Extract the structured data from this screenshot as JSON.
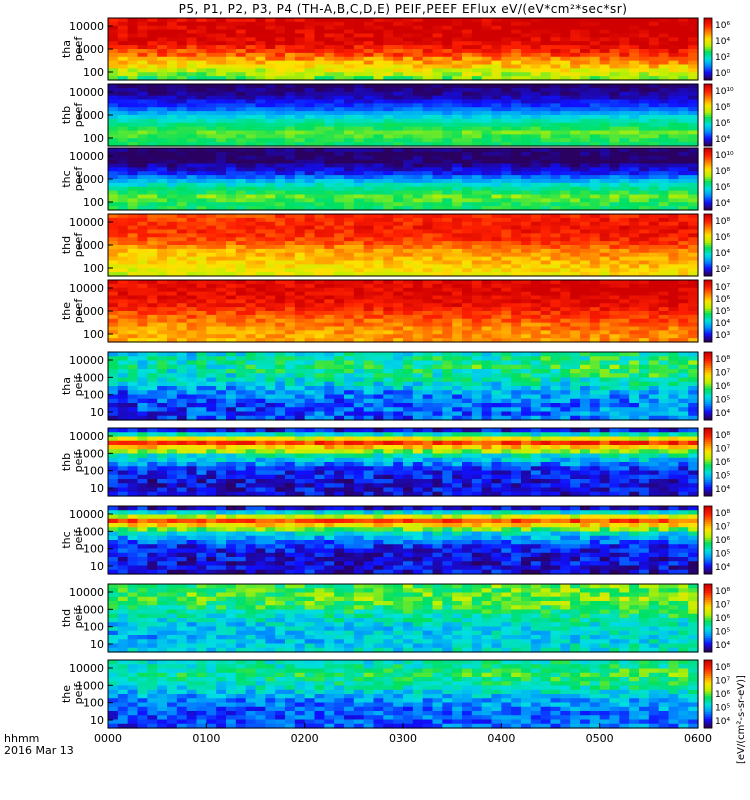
{
  "title": "P5, P1, P2, P3, P4 (TH-A,B,C,D,E) PEIF,PEEF EFlux eV/(eV*cm²*sec*sr)",
  "chart_data": {
    "type": "heatmap",
    "x_ticks": [
      "0000",
      "0100",
      "0200",
      "0300",
      "0400",
      "0500",
      "0600"
    ],
    "x_label_line1": "hhmm",
    "x_label_line2": "2016 Mar 13",
    "colorbar_unit": "[eV/(cm²-s-sr-eV)]",
    "colorscale": [
      "#2a0060",
      "#1010ff",
      "#0090ff",
      "#00e0e0",
      "#00e060",
      "#c0f000",
      "#ffe000",
      "#ff8000",
      "#ff2000",
      "#d00000"
    ],
    "panels": [
      {
        "probe": "tha",
        "product": "peef",
        "y_ticks": [
          "10000",
          "1000",
          "100"
        ],
        "cbar_ticks": [
          "10⁶",
          "10⁴",
          "10²",
          "10⁰"
        ],
        "cbar_range": [
          0,
          6
        ],
        "profile": [
          6,
          6,
          5.8,
          5,
          4,
          3
        ],
        "trend": 0.4,
        "noise": 0.5
      },
      {
        "probe": "thb",
        "product": "peef",
        "y_ticks": [
          "10000",
          "1000",
          "100"
        ],
        "cbar_ticks": [
          "10¹⁰",
          "10⁸",
          "10⁶",
          "10⁴"
        ],
        "cbar_range": [
          3,
          11
        ],
        "profile": [
          3,
          3.5,
          4.5,
          6,
          7,
          6.5
        ],
        "trend": 0,
        "noise": 0.3
      },
      {
        "probe": "thc",
        "product": "peef",
        "y_ticks": [
          "10000",
          "1000",
          "100"
        ],
        "cbar_ticks": [
          "10¹⁰",
          "10⁸",
          "10⁶",
          "10⁴"
        ],
        "cbar_range": [
          3,
          11
        ],
        "profile": [
          3,
          3,
          4,
          5.8,
          7,
          6.5
        ],
        "trend": 0,
        "noise": 0.4
      },
      {
        "probe": "thd",
        "product": "peef",
        "y_ticks": [
          "10000",
          "1000",
          "100"
        ],
        "cbar_ticks": [
          "10⁸",
          "10⁶",
          "10⁴",
          "10²"
        ],
        "cbar_range": [
          1,
          9
        ],
        "profile": [
          8,
          8.3,
          8,
          7,
          6.5,
          6
        ],
        "trend": 0.6,
        "noise": 0.5
      },
      {
        "probe": "the",
        "product": "peef",
        "y_ticks": [
          "10000",
          "1000",
          "100"
        ],
        "cbar_ticks": [
          "10⁷",
          "10⁶",
          "10⁵",
          "10⁴",
          "10³"
        ],
        "cbar_range": [
          2,
          8
        ],
        "profile": [
          7.8,
          7.8,
          7.6,
          7,
          6.6,
          6.4
        ],
        "trend": 0.3,
        "noise": 0.4
      },
      {
        "probe": "tha",
        "product": "peif",
        "y_ticks": [
          "10000",
          "1000",
          "100",
          "10"
        ],
        "cbar_ticks": [
          "10⁸",
          "10⁷",
          "10⁶",
          "10⁵",
          "10⁴"
        ],
        "cbar_range": [
          3,
          8.5
        ],
        "profile": [
          5,
          5.3,
          5,
          4.3,
          4,
          4
        ],
        "trend": 0.5,
        "noise": 0.6
      },
      {
        "probe": "thb",
        "product": "peif",
        "y_ticks": [
          "10000",
          "1000",
          "100",
          "10"
        ],
        "cbar_ticks": [
          "10⁸",
          "10⁷",
          "10⁶",
          "10⁵",
          "10⁴"
        ],
        "cbar_range": [
          3,
          8.5
        ],
        "profile": [
          3.5,
          7.8,
          5,
          3.8,
          3.5,
          3.5
        ],
        "trend": 0,
        "noise": 0.5
      },
      {
        "probe": "thc",
        "product": "peif",
        "y_ticks": [
          "10000",
          "1000",
          "100",
          "10"
        ],
        "cbar_ticks": [
          "10⁸",
          "10⁷",
          "10⁶",
          "10⁵",
          "10⁴"
        ],
        "cbar_range": [
          3,
          8.5
        ],
        "profile": [
          3.5,
          7.6,
          4.8,
          3.7,
          3.5,
          3.5
        ],
        "trend": 0,
        "noise": 0.5
      },
      {
        "probe": "thd",
        "product": "peif",
        "y_ticks": [
          "10000",
          "1000",
          "100",
          "10"
        ],
        "cbar_ticks": [
          "10⁸",
          "10⁷",
          "10⁶",
          "10⁵",
          "10⁴"
        ],
        "cbar_range": [
          3,
          8.5
        ],
        "profile": [
          5.6,
          5.8,
          5.3,
          4.8,
          4.6,
          4.8
        ],
        "trend": 0.4,
        "noise": 0.5
      },
      {
        "probe": "the",
        "product": "peif",
        "y_ticks": [
          "10000",
          "1000",
          "100",
          "10"
        ],
        "cbar_ticks": [
          "10⁸",
          "10⁷",
          "10⁶",
          "10⁵",
          "10⁴"
        ],
        "cbar_range": [
          3,
          8.5
        ],
        "profile": [
          5,
          5.4,
          5,
          4.3,
          4,
          4
        ],
        "trend": 0.4,
        "noise": 0.5
      }
    ]
  }
}
